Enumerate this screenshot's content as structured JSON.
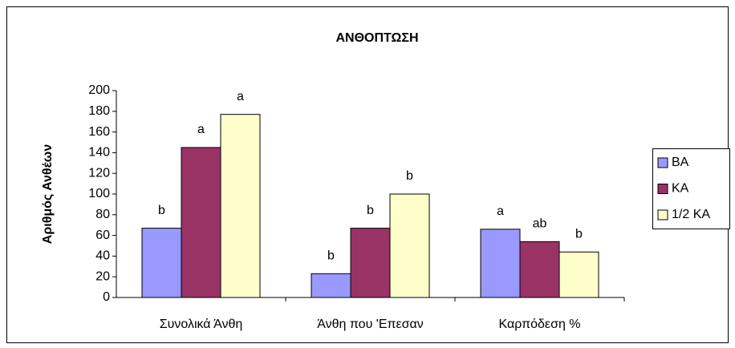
{
  "chart_data": {
    "type": "bar",
    "title": "ΑΝΘΟΠΤΩΣΗ",
    "y_label": "Αριθμός Ανθέων",
    "categories": [
      "Συνολικά Άνθη",
      "Άνθη που 'Επεσαν",
      "Καρπόδεση %"
    ],
    "series": [
      {
        "name": "ΒΑ",
        "color": "#9999ff",
        "values": [
          67,
          23,
          66
        ],
        "annotations": [
          "b",
          "b",
          "a"
        ]
      },
      {
        "name": "ΚΑ",
        "color": "#993366",
        "values": [
          145,
          67,
          54
        ],
        "annotations": [
          "a",
          "b",
          "ab"
        ]
      },
      {
        "name": "1/2 ΚΑ",
        "color": "#ffffcc",
        "values": [
          177,
          100,
          44
        ],
        "annotations": [
          "a",
          "b",
          "b"
        ]
      }
    ],
    "ylim": [
      0,
      200
    ],
    "yticks": [
      0,
      20,
      40,
      60,
      80,
      100,
      120,
      140,
      160,
      180,
      200
    ],
    "grid": false,
    "legend": "right"
  }
}
